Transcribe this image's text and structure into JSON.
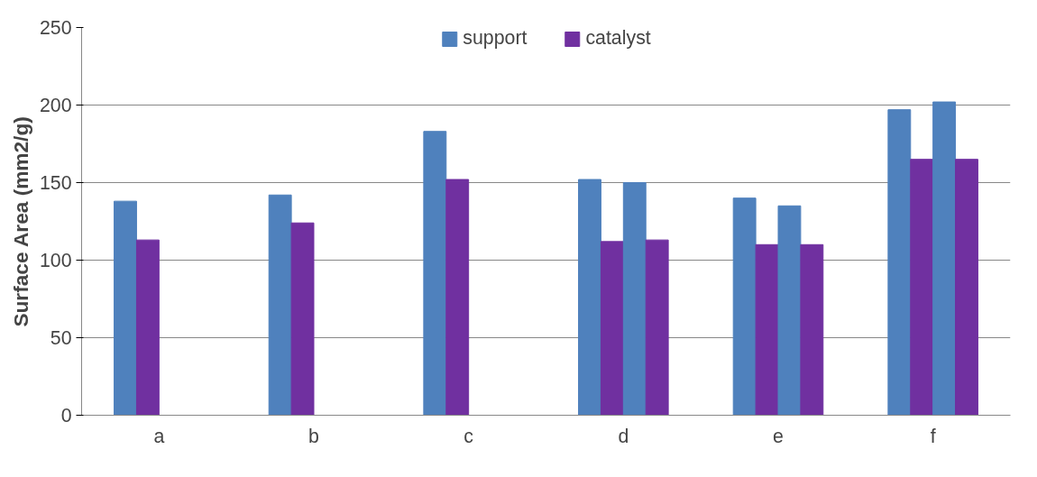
{
  "chart_data": {
    "type": "bar",
    "ylabel": "Surface Area (mm2/g)",
    "categories": [
      "a",
      "b",
      "c",
      "d",
      "e",
      "f"
    ],
    "series": [
      {
        "name": "support",
        "color": "#4f81bd",
        "values": [
          138,
          142,
          183,
          152,
          140,
          197
        ]
      },
      {
        "name": "catalyst",
        "color": "#7030a0",
        "values": [
          113,
          124,
          152,
          112,
          110,
          165
        ]
      },
      {
        "color": "#4f81bd",
        "values": [
          null,
          null,
          null,
          150,
          135,
          202
        ]
      },
      {
        "color": "#7030a0",
        "values": [
          null,
          null,
          null,
          113,
          110,
          165
        ]
      }
    ],
    "ylim": [
      0,
      250
    ],
    "yticks": [
      0,
      50,
      100,
      150,
      200,
      250
    ],
    "grid": "y",
    "legend": "top"
  }
}
